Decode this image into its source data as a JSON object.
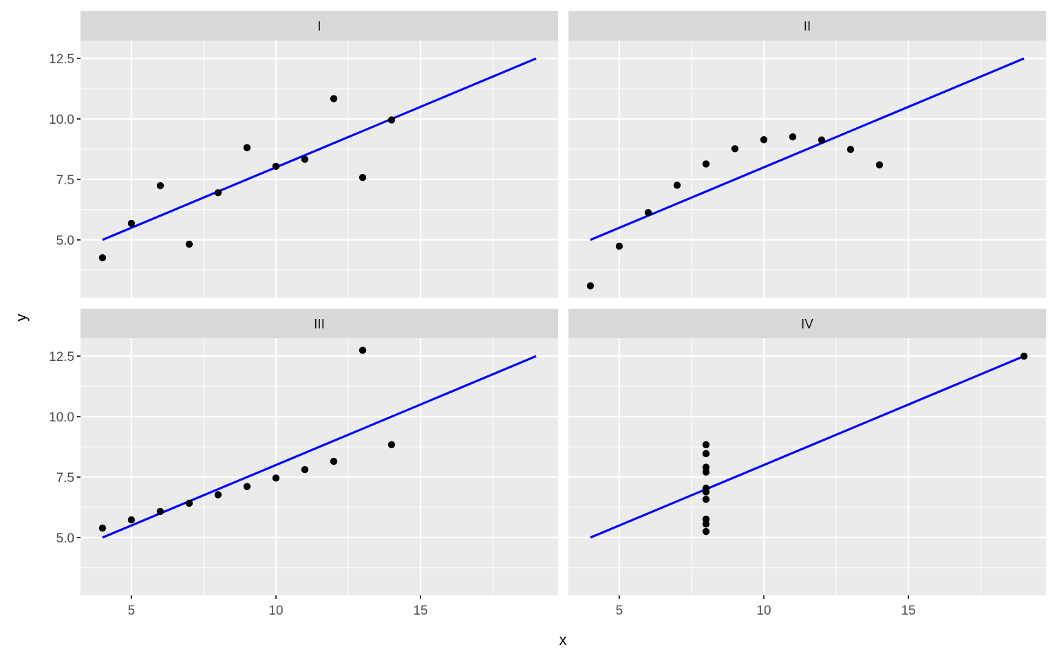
{
  "chart_data": {
    "type": "scatter",
    "xlabel": "x",
    "ylabel": "y",
    "xlim": [
      3.24,
      19.76
    ],
    "ylim": [
      2.61,
      13.24
    ],
    "x_ticks": [
      5,
      10,
      15
    ],
    "x_tick_labels": [
      "5",
      "10",
      "15"
    ],
    "y_ticks": [
      5,
      7.5,
      10,
      12.5
    ],
    "y_tick_labels": [
      "5.0",
      "7.5",
      "10.0",
      "12.5"
    ],
    "grid": true,
    "colors": {
      "panel_bg": "#EBEBEB",
      "strip_bg": "#D9D9D9",
      "grid": "#FFFFFF",
      "points": "#000000",
      "fit_line": "#0000FF"
    },
    "fit_line": {
      "intercept": 3.0,
      "slope": 0.5,
      "x_range": [
        4,
        19
      ]
    },
    "facets": [
      {
        "label": "I",
        "x": [
          10,
          8,
          13,
          9,
          11,
          14,
          6,
          4,
          12,
          7,
          5
        ],
        "y": [
          8.04,
          6.95,
          7.58,
          8.81,
          8.33,
          9.96,
          7.24,
          4.26,
          10.84,
          4.82,
          5.68
        ]
      },
      {
        "label": "II",
        "x": [
          10,
          8,
          13,
          9,
          11,
          14,
          6,
          4,
          12,
          7,
          5
        ],
        "y": [
          9.14,
          8.14,
          8.74,
          8.77,
          9.26,
          8.1,
          6.13,
          3.1,
          9.13,
          7.26,
          4.74
        ]
      },
      {
        "label": "III",
        "x": [
          10,
          8,
          13,
          9,
          11,
          14,
          6,
          4,
          12,
          7,
          5
        ],
        "y": [
          7.46,
          6.77,
          12.74,
          7.11,
          7.81,
          8.84,
          6.08,
          5.39,
          8.15,
          6.42,
          5.73
        ]
      },
      {
        "label": "IV",
        "x": [
          8,
          8,
          8,
          8,
          8,
          8,
          8,
          19,
          8,
          8,
          8
        ],
        "y": [
          6.58,
          5.76,
          7.71,
          8.84,
          8.47,
          7.04,
          5.25,
          12.5,
          5.56,
          7.91,
          6.89
        ]
      }
    ]
  }
}
